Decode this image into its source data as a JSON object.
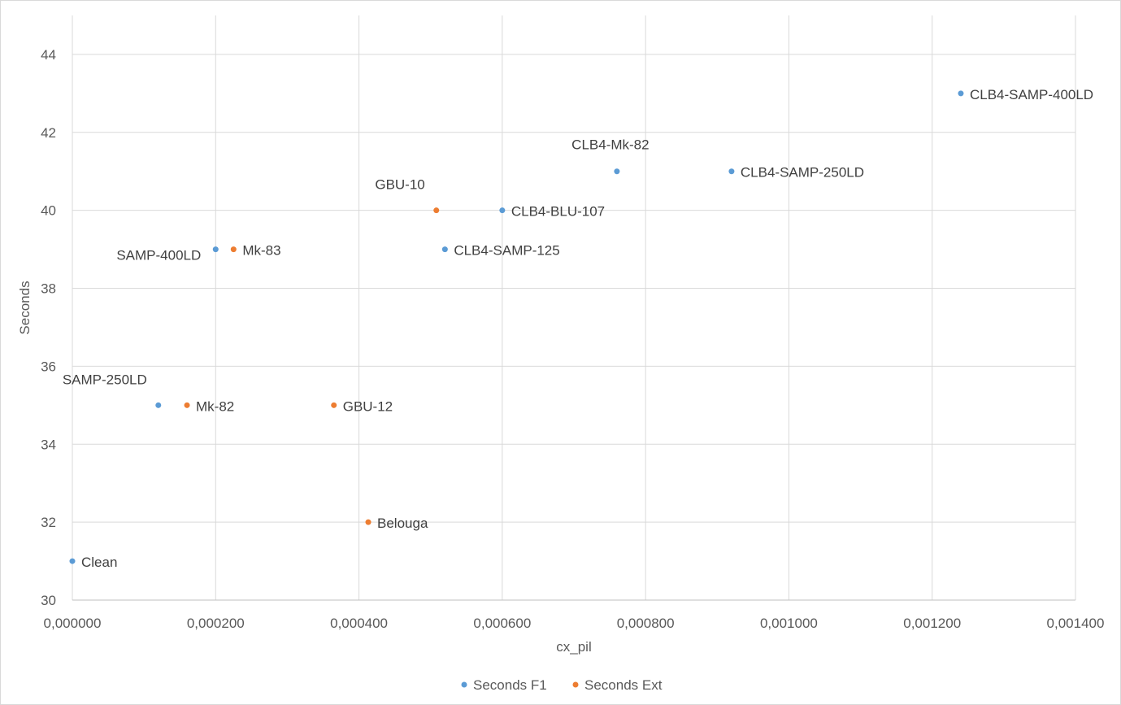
{
  "chart_data": {
    "type": "scatter",
    "title": "",
    "xlabel": "cx_pil",
    "ylabel": "Seconds",
    "xlim": [
      0,
      0.0014
    ],
    "ylim": [
      30,
      45
    ],
    "x_ticks": [
      0,
      0.0002,
      0.0004,
      0.0006,
      0.0008,
      0.001,
      0.0012,
      0.0014
    ],
    "x_tick_labels": [
      "0,000000",
      "0,000200",
      "0,000400",
      "0,000600",
      "0,000800",
      "0,001000",
      "0,001200",
      "0,001400"
    ],
    "y_ticks": [
      30,
      32,
      34,
      36,
      38,
      40,
      42,
      44
    ],
    "y_tick_labels": [
      "30",
      "32",
      "34",
      "36",
      "38",
      "40",
      "42",
      "44"
    ],
    "grid": true,
    "legend_position": "bottom",
    "series": [
      {
        "name": "Seconds F1",
        "color": "#5b9bd5",
        "points": [
          {
            "x": 0.0,
            "y": 31,
            "label": "Clean",
            "label_pos": "right"
          },
          {
            "x": 0.00012,
            "y": 35,
            "label": "SAMP-250LD",
            "label_pos": "above-left"
          },
          {
            "x": 0.0002,
            "y": 39,
            "label": "SAMP-400LD",
            "label_pos": "below-left"
          },
          {
            "x": 0.00052,
            "y": 39,
            "label": "CLB4-SAMP-125",
            "label_pos": "right"
          },
          {
            "x": 0.0006,
            "y": 40,
            "label": "CLB4-BLU-107",
            "label_pos": "right"
          },
          {
            "x": 0.00076,
            "y": 41,
            "label": "CLB4-Mk-82",
            "label_pos": "above"
          },
          {
            "x": 0.00092,
            "y": 41,
            "label": "CLB4-SAMP-250LD",
            "label_pos": "right"
          },
          {
            "x": 0.00124,
            "y": 43,
            "label": "CLB4-SAMP-400LD",
            "label_pos": "right"
          }
        ]
      },
      {
        "name": "Seconds Ext",
        "color": "#ed7d31",
        "points": [
          {
            "x": 0.00016,
            "y": 35,
            "label": "Mk-82",
            "label_pos": "right"
          },
          {
            "x": 0.000225,
            "y": 39,
            "label": "Mk-83",
            "label_pos": "right"
          },
          {
            "x": 0.000365,
            "y": 35,
            "label": "GBU-12",
            "label_pos": "right"
          },
          {
            "x": 0.000413,
            "y": 32,
            "label": "Belouga",
            "label_pos": "right"
          },
          {
            "x": 0.000508,
            "y": 40,
            "label": "GBU-10",
            "label_pos": "above-left"
          }
        ]
      }
    ]
  }
}
